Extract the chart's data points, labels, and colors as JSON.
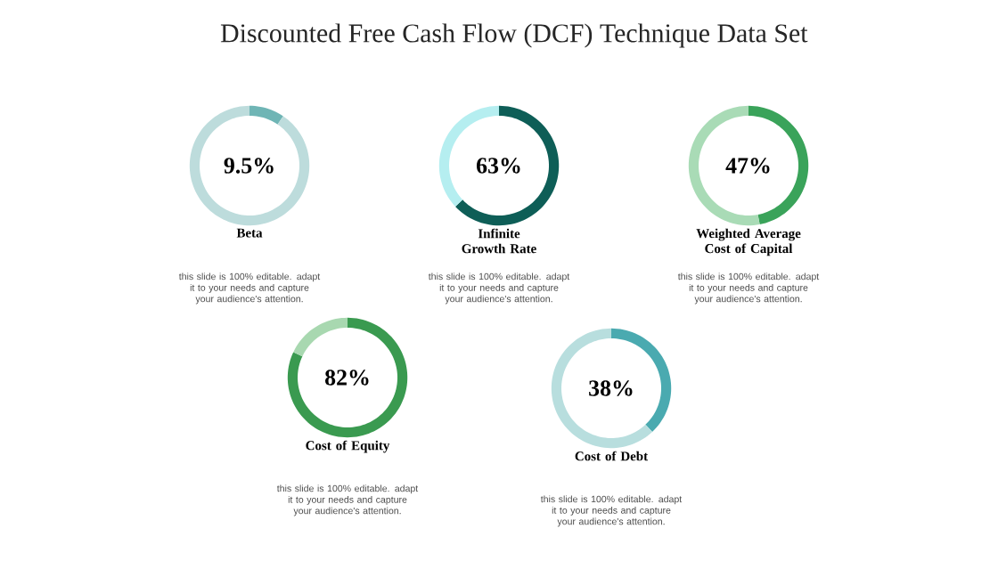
{
  "chart_data": [
    {
      "type": "other",
      "title": "Discounted Free Cash Flow (DCF) Technique Data Set"
    },
    {
      "type": "donut",
      "title": "Beta",
      "categories": [
        null,
        null
      ],
      "values": [
        9.5,
        90.5
      ],
      "colors": [
        "#6fb5b5",
        "#bddcdc"
      ],
      "annotations": [
        "9.5%",
        "this slide is 100% editable. adapt it to your needs and capture your audience's attention."
      ]
    },
    {
      "type": "donut",
      "title": "Infinite Growth Rate",
      "categories": [
        null,
        null
      ],
      "values": [
        63,
        37
      ],
      "colors": [
        "#0e5e57",
        "#b5eef0"
      ],
      "annotations": [
        "63%",
        "this slide is 100% editable. adapt it to your needs and capture your audience's attention."
      ]
    },
    {
      "type": "donut",
      "title": "Weighted Average Cost of Capital",
      "categories": [
        null,
        null
      ],
      "values": [
        47,
        53
      ],
      "colors": [
        "#3aa35a",
        "#a9dbb6"
      ],
      "annotations": [
        "47%",
        "this slide is 100% editable. adapt it to your needs and capture your audience's attention."
      ]
    },
    {
      "type": "donut",
      "title": "Cost of Equity",
      "categories": [
        null,
        null
      ],
      "values": [
        82,
        18
      ],
      "colors": [
        "#3a9a50",
        "#a8d8b0"
      ],
      "annotations": [
        "82%",
        "this slide is 100% editable. adapt it to your needs and capture your audience's attention."
      ]
    },
    {
      "type": "donut",
      "title": "Cost of Debt",
      "categories": [
        null,
        null
      ],
      "values": [
        38,
        62
      ],
      "colors": [
        "#4aaab0",
        "#b8dede"
      ],
      "annotations": [
        "38%",
        "this slide is 100% editable. adapt it to your needs and capture your audience's attention."
      ]
    }
  ]
}
